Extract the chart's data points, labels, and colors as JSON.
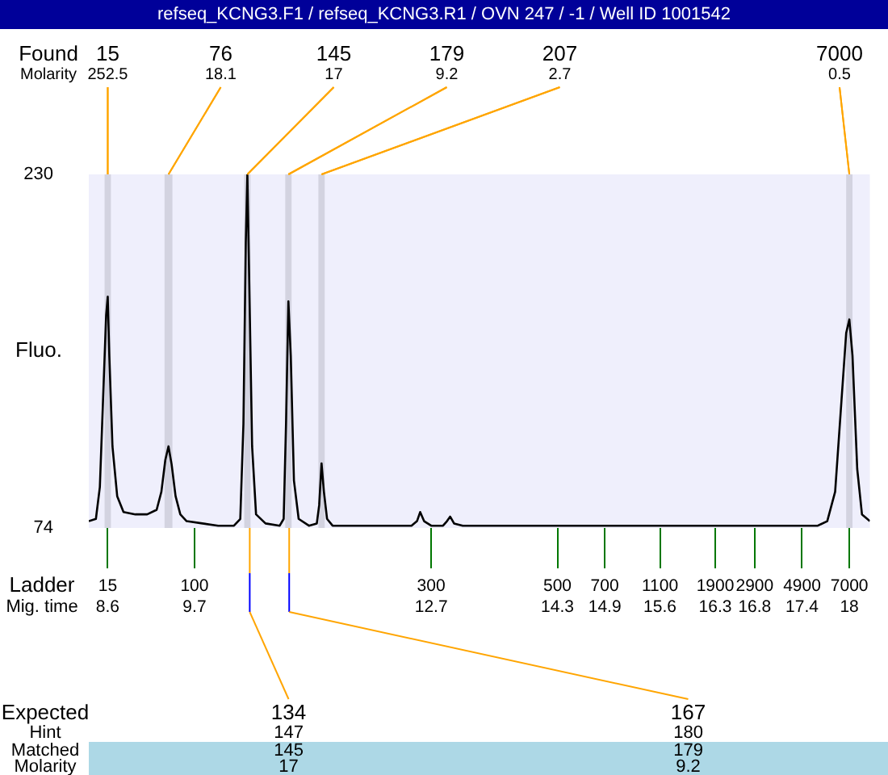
{
  "chart_data": {
    "type": "line",
    "title": "refseq_KCNG3.F1 / refseq_KCNG3.R1 / OVN 247 / -1 / Well ID 1001542",
    "xlabel": "Mig. time",
    "ylabel": "Fluo.",
    "color": "#000000",
    "x": [
      8.36,
      8.45,
      8.5,
      8.54,
      8.58,
      8.6,
      8.62,
      8.66,
      8.72,
      8.8,
      8.95,
      9.1,
      9.22,
      9.28,
      9.33,
      9.37,
      9.41,
      9.46,
      9.52,
      9.6,
      9.8,
      10.0,
      10.2,
      10.28,
      10.32,
      10.35,
      10.37,
      10.39,
      10.43,
      10.48,
      10.6,
      10.78,
      10.83,
      10.86,
      10.89,
      10.92,
      10.96,
      11.02,
      11.15,
      11.25,
      11.28,
      11.31,
      11.34,
      11.38,
      11.45,
      11.7,
      12.0,
      12.45,
      12.52,
      12.56,
      12.61,
      12.7,
      12.85,
      12.9,
      12.94,
      12.99,
      13.1,
      14.0,
      15.0,
      16.0,
      17.0,
      17.6,
      17.72,
      17.82,
      17.9,
      17.96,
      18.0,
      18.04,
      18.1,
      18.16,
      18.26
    ],
    "values": [
      77,
      78,
      92,
      130,
      168,
      176,
      150,
      110,
      88,
      81,
      80,
      80,
      82,
      90,
      104,
      110,
      102,
      88,
      80,
      77,
      76,
      75,
      75,
      78,
      120,
      200,
      230,
      190,
      110,
      80,
      76,
      75,
      78,
      120,
      174,
      150,
      95,
      78,
      75,
      76,
      84,
      102.5,
      90,
      78,
      75,
      75,
      75,
      75,
      77,
      81,
      77,
      75,
      75,
      77,
      79,
      76,
      75,
      75,
      75,
      75,
      75,
      75,
      77,
      90,
      130,
      160,
      166,
      150,
      100,
      80,
      77
    ],
    "xlim": [
      8.36,
      18.26
    ],
    "ylim": [
      74,
      230
    ],
    "yticks": [
      74,
      230
    ],
    "xticks": [
      8.6,
      9.7,
      12.7,
      14.3,
      14.9,
      15.6,
      16.3,
      16.8,
      17.4,
      18
    ],
    "bands": [
      {
        "axis": "x",
        "from": 8.56,
        "to": 8.64,
        "color": "#d3d3e0"
      },
      {
        "axis": "x",
        "from": 9.32,
        "to": 9.42,
        "color": "#d3d3e0"
      },
      {
        "axis": "x",
        "from": 10.33,
        "to": 10.41,
        "color": "#d3d3e0"
      },
      {
        "axis": "x",
        "from": 10.85,
        "to": 10.93,
        "color": "#d3d3e0"
      },
      {
        "axis": "x",
        "from": 11.27,
        "to": 11.35,
        "color": "#d3d3e0"
      },
      {
        "axis": "x",
        "from": 17.96,
        "to": 18.04,
        "color": "#d3d3e0"
      }
    ],
    "annotations": [
      "Found",
      {
        "text": "15",
        "x": 8.6,
        "y": 230
      },
      {
        "text": "76",
        "x": 9.37,
        "y": 230
      },
      {
        "text": "145",
        "x": 10.37,
        "y": 230
      },
      {
        "text": "179",
        "x": 10.89,
        "y": 230
      },
      {
        "text": "207",
        "x": 11.31,
        "y": 230
      },
      {
        "text": "7000",
        "x": 18,
        "y": 230
      },
      "Molarity",
      {
        "text": "252.5",
        "x": 8.6,
        "y": 230
      },
      {
        "text": "18.1",
        "x": 9.37,
        "y": 230
      },
      {
        "text": "17",
        "x": 10.37,
        "y": 230
      },
      {
        "text": "9.2",
        "x": 10.89,
        "y": 230
      },
      {
        "text": "2.7",
        "x": 11.31,
        "y": 230
      },
      {
        "text": "0.5",
        "x": 18,
        "y": 230
      },
      "Ladder",
      "15",
      "100",
      "300",
      "500",
      "700",
      "1100",
      "1900",
      "2900",
      "4900",
      "7000",
      "Expected",
      {
        "text": "134",
        "x": 10.4
      },
      {
        "text": "167",
        "x": 10.9
      },
      "Hint",
      "147",
      "180",
      "Matched",
      "145",
      "179",
      "Molarity",
      "17",
      "9.2"
    ]
  }
}
